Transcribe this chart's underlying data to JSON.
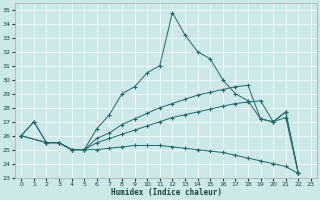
{
  "xlabel": "Humidex (Indice chaleur)",
  "bg_color": "#cce8e8",
  "line_color": "#1a6b6b",
  "xlim": [
    -0.5,
    23.5
  ],
  "ylim": [
    23,
    35.5
  ],
  "xticks": [
    0,
    1,
    2,
    3,
    4,
    5,
    6,
    7,
    8,
    9,
    10,
    11,
    12,
    13,
    14,
    15,
    16,
    17,
    18,
    19,
    20,
    21,
    22,
    23
  ],
  "yticks": [
    23,
    24,
    25,
    26,
    27,
    28,
    29,
    30,
    31,
    32,
    33,
    34,
    35
  ],
  "series": [
    {
      "x": [
        0,
        1,
        2,
        3,
        4,
        5,
        6,
        7,
        8,
        9,
        10,
        11,
        12,
        13,
        14,
        15,
        16,
        17,
        18,
        19,
        20,
        21,
        22
      ],
      "y": [
        26,
        27,
        25.5,
        25.5,
        25.0,
        25.0,
        26.5,
        27.5,
        29.0,
        29.5,
        30.5,
        31.0,
        34.8,
        33.2,
        32.0,
        31.5,
        30.0,
        29.0,
        28.5,
        27.2,
        27.0,
        27.7,
        23.3
      ]
    },
    {
      "x": [
        0,
        1,
        2,
        3,
        4,
        5,
        6,
        7,
        8,
        9,
        10,
        11,
        12,
        13,
        14,
        15,
        16,
        17,
        18,
        19,
        20,
        21,
        22
      ],
      "y": [
        26,
        27,
        25.5,
        25.5,
        25.0,
        25.0,
        25.8,
        26.2,
        26.8,
        27.2,
        27.6,
        28.0,
        28.3,
        28.6,
        28.9,
        29.1,
        29.3,
        29.5,
        29.6,
        27.2,
        27.0,
        27.7,
        23.3
      ]
    },
    {
      "x": [
        0,
        2,
        3,
        4,
        5,
        6,
        7,
        8,
        9,
        10,
        11,
        12,
        13,
        14,
        15,
        16,
        17,
        18,
        19,
        20,
        21,
        22
      ],
      "y": [
        26,
        25.5,
        25.5,
        25.0,
        25.0,
        25.5,
        25.8,
        26.1,
        26.4,
        26.7,
        27.0,
        27.3,
        27.5,
        27.7,
        27.9,
        28.1,
        28.3,
        28.4,
        28.5,
        27.0,
        27.3,
        23.3
      ]
    },
    {
      "x": [
        0,
        2,
        3,
        4,
        5,
        6,
        7,
        8,
        9,
        10,
        11,
        12,
        13,
        14,
        15,
        16,
        17,
        18,
        19,
        20,
        21,
        22
      ],
      "y": [
        26,
        25.5,
        25.5,
        25.0,
        25.0,
        25.0,
        25.1,
        25.2,
        25.3,
        25.3,
        25.3,
        25.2,
        25.1,
        25.0,
        24.9,
        24.8,
        24.6,
        24.4,
        24.2,
        24.0,
        23.8,
        23.3
      ]
    }
  ]
}
